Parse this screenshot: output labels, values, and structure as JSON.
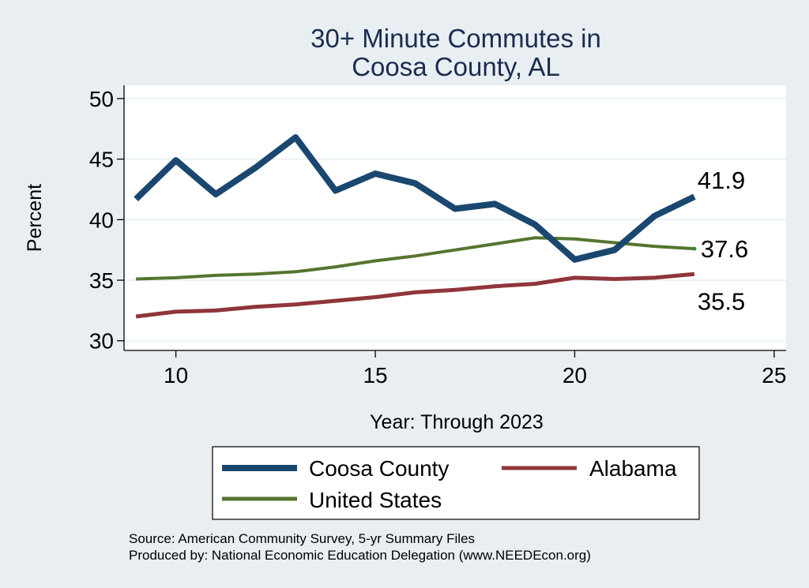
{
  "chart_data": {
    "type": "line",
    "title": [
      "30+ Minute Commutes in",
      "Coosa County, AL"
    ],
    "xlabel": "Year: Through 2023",
    "ylabel": "Percent",
    "xlim": [
      8.7,
      25.3
    ],
    "ylim": [
      29.2,
      51.1
    ],
    "xticks": [
      10,
      15,
      20,
      25
    ],
    "yticks": [
      30,
      35,
      40,
      45,
      50
    ],
    "grid": "horizontal",
    "series": [
      {
        "name": "Coosa County",
        "color": "#1a476f",
        "x": [
          9,
          10,
          11,
          12,
          13,
          14,
          15,
          16,
          17,
          18,
          19,
          20,
          21,
          22,
          23
        ],
        "values": [
          41.7,
          44.9,
          42.1,
          44.3,
          46.8,
          42.4,
          43.8,
          43.0,
          40.9,
          41.3,
          39.6,
          36.7,
          37.5,
          40.3,
          41.9
        ]
      },
      {
        "name": "Alabama",
        "color": "#90353b",
        "x": [
          9,
          10,
          11,
          12,
          13,
          14,
          15,
          16,
          17,
          18,
          19,
          20,
          21,
          22,
          23
        ],
        "values": [
          32.0,
          32.4,
          32.5,
          32.8,
          33.0,
          33.3,
          33.6,
          34.0,
          34.2,
          34.5,
          34.7,
          35.2,
          35.1,
          35.2,
          35.5
        ]
      },
      {
        "name": "United States",
        "color": "#55752f",
        "x": [
          9,
          10,
          11,
          12,
          13,
          14,
          15,
          16,
          17,
          18,
          19,
          20,
          21,
          22,
          23
        ],
        "values": [
          35.1,
          35.2,
          35.4,
          35.5,
          35.7,
          36.1,
          36.6,
          37.0,
          37.5,
          38.0,
          38.5,
          38.4,
          38.1,
          37.8,
          37.6
        ]
      }
    ],
    "end_labels": [
      {
        "series": "Coosa County",
        "text": "41.9"
      },
      {
        "series": "United States",
        "text": "37.6"
      },
      {
        "series": "Alabama",
        "text": "35.5"
      }
    ],
    "legend": {
      "position": "bottom",
      "items": [
        "Coosa County",
        "Alabama",
        "United States"
      ]
    },
    "notes": [
      "Source: American Community Survey, 5-yr Summary Files",
      "Produced by: National Economic Education Delegation (www.NEEDEcon.org)"
    ]
  }
}
